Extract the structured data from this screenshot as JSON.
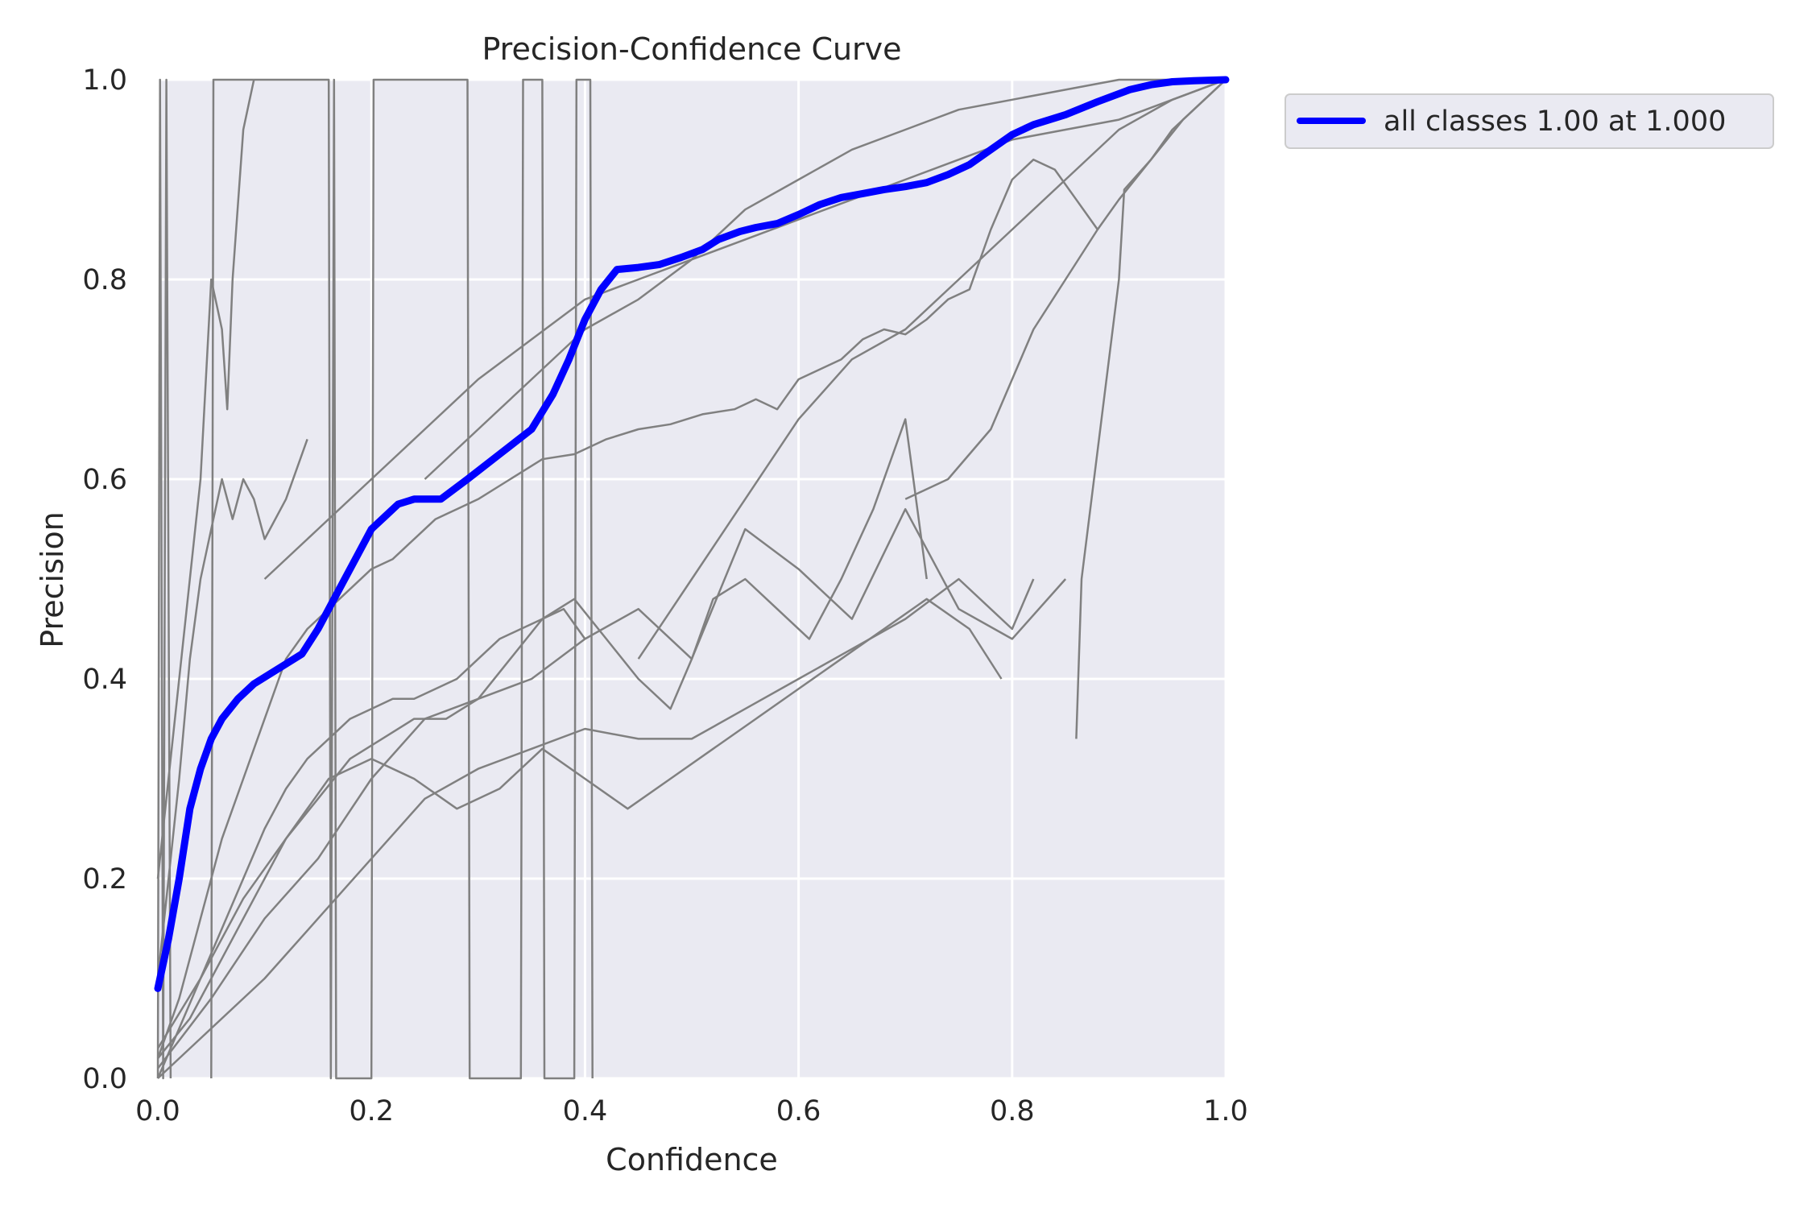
{
  "chart_data": {
    "type": "line",
    "title": "Precision-Confidence Curve",
    "xlabel": "Confidence",
    "ylabel": "Precision",
    "xlim": [
      0,
      1
    ],
    "ylim": [
      0,
      1
    ],
    "x_ticks": [
      "0.0",
      "0.2",
      "0.4",
      "0.6",
      "0.8",
      "1.0"
    ],
    "y_ticks": [
      "0.0",
      "0.2",
      "0.4",
      "0.6",
      "0.8",
      "1.0"
    ],
    "grid": true,
    "legend_position": "outside top-right",
    "background_color": "#EAEAF2",
    "series": [
      {
        "name": "all classes 1.00 at 1.000",
        "color": "#0000FF",
        "x": [
          0.0,
          0.01,
          0.02,
          0.03,
          0.04,
          0.05,
          0.06,
          0.075,
          0.09,
          0.105,
          0.12,
          0.135,
          0.15,
          0.17,
          0.185,
          0.2,
          0.215,
          0.225,
          0.24,
          0.265,
          0.29,
          0.32,
          0.35,
          0.37,
          0.385,
          0.4,
          0.415,
          0.43,
          0.45,
          0.47,
          0.49,
          0.51,
          0.525,
          0.545,
          0.56,
          0.58,
          0.6,
          0.62,
          0.64,
          0.66,
          0.68,
          0.7,
          0.72,
          0.74,
          0.76,
          0.78,
          0.8,
          0.82,
          0.85,
          0.88,
          0.91,
          0.93,
          0.95,
          0.97,
          1.0
        ],
        "y": [
          0.09,
          0.14,
          0.2,
          0.27,
          0.31,
          0.34,
          0.36,
          0.38,
          0.395,
          0.405,
          0.415,
          0.425,
          0.45,
          0.49,
          0.52,
          0.55,
          0.565,
          0.575,
          0.58,
          0.58,
          0.6,
          0.625,
          0.65,
          0.685,
          0.72,
          0.76,
          0.79,
          0.81,
          0.812,
          0.815,
          0.822,
          0.83,
          0.84,
          0.848,
          0.852,
          0.856,
          0.865,
          0.875,
          0.882,
          0.886,
          0.89,
          0.893,
          0.897,
          0.905,
          0.915,
          0.93,
          0.945,
          0.955,
          0.965,
          0.978,
          0.99,
          0.995,
          0.998,
          0.999,
          1.0
        ]
      }
    ],
    "class_curves": [
      {
        "color": "#808080",
        "x": [
          0.0,
          0.02,
          0.04,
          0.06,
          0.08,
          0.1,
          0.12,
          0.14,
          0.16,
          0.18,
          0.2,
          0.22,
          0.24,
          0.26,
          0.28,
          0.3,
          0.33,
          0.36,
          0.39,
          0.42,
          0.45,
          0.48,
          0.51,
          0.54,
          0.56,
          0.58,
          0.6,
          0.62,
          0.64,
          0.66,
          0.68,
          0.7,
          0.72,
          0.74,
          0.76,
          0.78,
          0.8,
          0.82,
          0.84,
          0.86,
          0.88
        ],
        "y": [
          0.02,
          0.08,
          0.16,
          0.24,
          0.3,
          0.36,
          0.42,
          0.45,
          0.47,
          0.49,
          0.51,
          0.52,
          0.54,
          0.56,
          0.57,
          0.58,
          0.6,
          0.62,
          0.625,
          0.64,
          0.65,
          0.655,
          0.665,
          0.67,
          0.68,
          0.67,
          0.7,
          0.71,
          0.72,
          0.74,
          0.75,
          0.745,
          0.76,
          0.78,
          0.79,
          0.85,
          0.9,
          0.92,
          0.91,
          0.88,
          0.85
        ]
      },
      {
        "color": "#808080",
        "x": [
          0.0,
          0.02,
          0.04,
          0.06,
          0.08,
          0.1,
          0.12,
          0.14,
          0.16,
          0.18,
          0.2,
          0.22,
          0.24,
          0.26,
          0.28,
          0.3,
          0.32,
          0.34,
          0.36,
          0.38,
          0.4
        ],
        "y": [
          0.0,
          0.05,
          0.1,
          0.15,
          0.2,
          0.25,
          0.29,
          0.32,
          0.34,
          0.36,
          0.37,
          0.38,
          0.38,
          0.39,
          0.4,
          0.42,
          0.44,
          0.45,
          0.46,
          0.47,
          0.44
        ]
      },
      {
        "color": "#808080",
        "x": [
          0.0,
          0.03,
          0.06,
          0.09,
          0.12,
          0.15,
          0.18,
          0.21,
          0.24,
          0.27,
          0.3,
          0.33,
          0.36,
          0.39,
          0.42,
          0.45,
          0.48,
          0.5,
          0.52,
          0.55,
          0.58,
          0.61,
          0.64,
          0.67,
          0.7,
          0.72
        ],
        "y": [
          0.02,
          0.06,
          0.12,
          0.18,
          0.24,
          0.28,
          0.32,
          0.34,
          0.36,
          0.36,
          0.38,
          0.42,
          0.46,
          0.48,
          0.44,
          0.4,
          0.37,
          0.42,
          0.48,
          0.5,
          0.47,
          0.44,
          0.5,
          0.57,
          0.66,
          0.5
        ]
      },
      {
        "color": "#808080",
        "x": [
          0.0,
          0.05,
          0.1,
          0.15,
          0.2,
          0.25,
          0.3,
          0.35,
          0.4,
          0.45,
          0.5,
          0.55,
          0.6,
          0.65,
          0.7,
          0.75,
          0.8,
          0.85
        ],
        "y": [
          0.01,
          0.08,
          0.16,
          0.22,
          0.3,
          0.36,
          0.38,
          0.4,
          0.44,
          0.47,
          0.42,
          0.55,
          0.51,
          0.46,
          0.57,
          0.47,
          0.44,
          0.5
        ]
      },
      {
        "color": "#808080",
        "x": [
          0.0,
          0.04,
          0.08,
          0.12,
          0.16,
          0.2,
          0.24,
          0.28,
          0.32,
          0.36,
          0.4,
          0.44,
          0.48,
          0.52,
          0.56,
          0.6,
          0.64,
          0.68,
          0.72,
          0.76,
          0.79
        ],
        "y": [
          0.03,
          0.1,
          0.18,
          0.24,
          0.3,
          0.32,
          0.3,
          0.27,
          0.29,
          0.33,
          0.3,
          0.27,
          0.3,
          0.33,
          0.36,
          0.39,
          0.42,
          0.45,
          0.48,
          0.45,
          0.4
        ]
      },
      {
        "color": "#808080",
        "x": [
          0.0,
          0.05,
          0.1,
          0.15,
          0.2,
          0.25,
          0.3,
          0.35,
          0.4,
          0.45,
          0.5,
          0.55,
          0.6,
          0.65,
          0.7,
          0.75,
          0.8,
          0.82
        ],
        "y": [
          0.0,
          0.05,
          0.1,
          0.16,
          0.22,
          0.28,
          0.31,
          0.33,
          0.35,
          0.34,
          0.34,
          0.37,
          0.4,
          0.43,
          0.46,
          0.5,
          0.45,
          0.5
        ]
      },
      {
        "color": "#808080",
        "x": [
          0.0,
          0.01,
          0.02,
          0.03,
          0.04,
          0.05,
          0.06,
          0.07,
          0.08,
          0.09,
          0.1,
          0.12,
          0.14
        ],
        "y": [
          0.1,
          0.2,
          0.3,
          0.42,
          0.5,
          0.55,
          0.6,
          0.56,
          0.6,
          0.58,
          0.54,
          0.58,
          0.64
        ]
      },
      {
        "color": "#808080",
        "x": [
          0.0,
          0.02,
          0.04,
          0.05,
          0.06,
          0.065,
          0.07,
          0.08,
          0.09
        ],
        "y": [
          0.2,
          0.4,
          0.6,
          0.8,
          0.75,
          0.67,
          0.8,
          0.95,
          1.0
        ]
      },
      {
        "color": "#808080",
        "x": [
          0.1,
          0.15,
          0.2,
          0.25,
          0.3,
          0.35,
          0.4,
          0.45,
          0.5,
          0.55,
          0.6,
          0.65,
          0.7,
          0.75,
          0.8,
          0.85,
          0.9,
          0.95,
          1.0
        ],
        "y": [
          0.5,
          0.55,
          0.6,
          0.65,
          0.7,
          0.74,
          0.78,
          0.8,
          0.82,
          0.84,
          0.86,
          0.88,
          0.9,
          0.92,
          0.94,
          0.95,
          0.96,
          0.98,
          1.0
        ]
      },
      {
        "color": "#808080",
        "x": [
          0.25,
          0.3,
          0.35,
          0.4,
          0.45,
          0.5,
          0.55,
          0.6,
          0.65,
          0.7,
          0.75,
          0.8,
          0.85,
          0.9,
          0.95,
          1.0
        ],
        "y": [
          0.6,
          0.65,
          0.7,
          0.75,
          0.78,
          0.82,
          0.87,
          0.9,
          0.93,
          0.95,
          0.97,
          0.98,
          0.99,
          1.0,
          1.0,
          1.0
        ]
      },
      {
        "color": "#808080",
        "x": [
          0.45,
          0.5,
          0.55,
          0.6,
          0.65,
          0.7,
          0.75,
          0.8,
          0.85,
          0.9,
          0.95,
          1.0
        ],
        "y": [
          0.42,
          0.5,
          0.58,
          0.66,
          0.72,
          0.75,
          0.8,
          0.85,
          0.9,
          0.95,
          0.98,
          1.0
        ]
      },
      {
        "color": "#808080",
        "x": [
          0.7,
          0.74,
          0.78,
          0.8,
          0.82,
          0.85,
          0.88,
          0.9,
          0.93,
          0.96,
          1.0
        ],
        "y": [
          0.58,
          0.6,
          0.65,
          0.7,
          0.75,
          0.8,
          0.85,
          0.88,
          0.92,
          0.96,
          1.0
        ]
      },
      {
        "color": "#808080",
        "x": [
          0.0,
          0.002,
          0.005,
          0.008,
          0.012
        ],
        "y": [
          0.0,
          1.0,
          0.0,
          1.0,
          0.0
        ]
      },
      {
        "color": "#808080",
        "x": [
          0.05,
          0.052,
          0.16,
          0.162,
          0.165,
          0.167,
          0.2,
          0.202,
          0.29,
          0.292,
          0.34,
          0.342,
          0.36,
          0.362,
          0.39,
          0.392,
          0.405,
          0.407
        ],
        "y": [
          0.0,
          1.0,
          1.0,
          0.0,
          1.0,
          0.0,
          0.0,
          1.0,
          1.0,
          0.0,
          0.0,
          1.0,
          1.0,
          0.0,
          0.0,
          1.0,
          1.0,
          0.0
        ]
      },
      {
        "color": "#808080",
        "x": [
          0.86,
          0.865,
          0.9,
          0.905,
          0.93,
          0.95,
          0.98,
          1.0
        ],
        "y": [
          0.34,
          0.5,
          0.8,
          0.89,
          0.92,
          0.95,
          0.98,
          1.0
        ]
      }
    ]
  }
}
